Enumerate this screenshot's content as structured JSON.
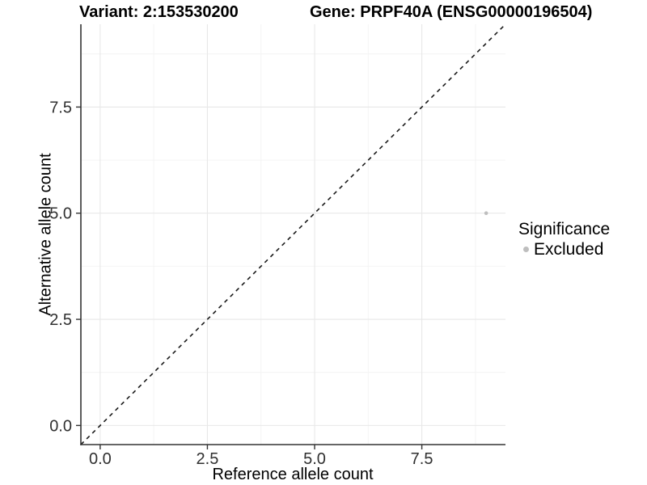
{
  "titles": {
    "variant": "Variant: 2:153530200",
    "gene": "Gene: PRPF40A (ENSG00000196504)"
  },
  "chart_data": {
    "type": "scatter",
    "xlabel": "Reference allele count",
    "ylabel": "Alternative allele count",
    "xlim": [
      -0.45,
      9.45
    ],
    "ylim": [
      -0.45,
      9.45
    ],
    "xticks": {
      "values": [
        0,
        2.5,
        5,
        7.5
      ],
      "labels": [
        "0.0",
        "2.5",
        "5.0",
        "7.5"
      ]
    },
    "yticks": {
      "values": [
        0,
        2.5,
        5,
        7.5
      ],
      "labels": [
        "0.0",
        "2.5",
        "5.0",
        "7.5"
      ]
    },
    "minor_xticks": [
      1.25,
      3.75,
      6.25,
      8.75
    ],
    "minor_yticks": [
      1.25,
      3.75,
      6.25,
      8.75
    ],
    "grid": true,
    "reference_line": {
      "type": "identity",
      "style": "dashed",
      "color": "#1a1a1a"
    },
    "series": [
      {
        "name": "Excluded",
        "color": "#bebebe",
        "point_radius": 2.3,
        "points": [
          {
            "x": 9,
            "y": 5
          }
        ]
      }
    ],
    "legend": {
      "title": "Significance",
      "position": "right",
      "items": [
        {
          "label": "Excluded",
          "color": "#bebebe"
        }
      ]
    }
  },
  "colors": {
    "background": "#ffffff",
    "grid_major": "#e8e8e8",
    "grid_minor": "#f4f4f4",
    "axis": "#333333",
    "tick_text": "#303030",
    "point": "#bebebe"
  }
}
